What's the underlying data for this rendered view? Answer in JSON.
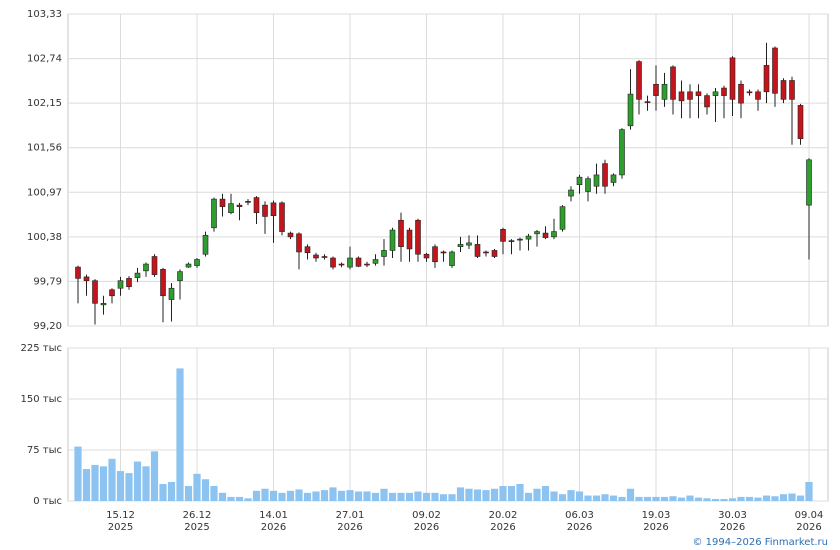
{
  "chart_data": {
    "type": "candlestick",
    "up_color": "#2e9e2e",
    "down_color": "#c3161c",
    "grid": true,
    "ylim": [
      99.2,
      103.33
    ],
    "yticks": [
      {
        "value": 99.2,
        "label": "99,20"
      },
      {
        "value": 99.79,
        "label": "99,79"
      },
      {
        "value": 100.38,
        "label": "100,38"
      },
      {
        "value": 100.97,
        "label": "100,97"
      },
      {
        "value": 101.56,
        "label": "101,56"
      },
      {
        "value": 102.15,
        "label": "102,15"
      },
      {
        "value": 102.74,
        "label": "102,74"
      },
      {
        "value": 103.33,
        "label": "103,33"
      }
    ],
    "categories": [
      null,
      null,
      null,
      null,
      null,
      "15.12 2025",
      null,
      null,
      null,
      null,
      null,
      null,
      null,
      null,
      "26.12 2025",
      null,
      null,
      null,
      null,
      null,
      null,
      null,
      null,
      "14.01 2026",
      null,
      null,
      null,
      null,
      null,
      null,
      null,
      null,
      "27.01 2026",
      null,
      null,
      null,
      null,
      null,
      null,
      null,
      null,
      "09.02 2026",
      null,
      null,
      null,
      null,
      null,
      null,
      null,
      null,
      "20.02 2026",
      null,
      null,
      null,
      null,
      null,
      null,
      null,
      null,
      "06.03 2026",
      null,
      null,
      null,
      null,
      null,
      null,
      null,
      null,
      "19.03 2026",
      null,
      null,
      null,
      null,
      null,
      null,
      null,
      null,
      "30.03 2026",
      null,
      null,
      null,
      null,
      null,
      null,
      null,
      null,
      "09.04 2026"
    ],
    "open": [
      99.98,
      99.85,
      99.8,
      99.48,
      99.68,
      99.7,
      99.83,
      99.84,
      99.93,
      100.12,
      99.95,
      99.55,
      99.8,
      99.98,
      100.0,
      100.15,
      100.5,
      100.88,
      100.7,
      100.8,
      100.85,
      100.9,
      100.8,
      100.83,
      100.83,
      100.43,
      100.42,
      100.25,
      100.14,
      100.12,
      100.1,
      100.02,
      99.98,
      100.1,
      100.02,
      100.03,
      100.12,
      100.2,
      100.6,
      100.47,
      100.6,
      100.15,
      100.25,
      100.18,
      100.0,
      100.25,
      100.27,
      100.28,
      100.18,
      100.2,
      100.48,
      100.33,
      100.35,
      100.35,
      100.42,
      100.43,
      100.38,
      100.48,
      100.92,
      101.07,
      100.98,
      101.05,
      101.35,
      101.1,
      101.2,
      101.85,
      102.7,
      102.17,
      102.4,
      102.2,
      102.63,
      102.3,
      102.3,
      102.3,
      102.25,
      102.25,
      102.35,
      102.75,
      102.4,
      102.3,
      102.3,
      102.65,
      102.88,
      102.45,
      102.45,
      102.12,
      100.8
    ],
    "high": [
      100.0,
      99.88,
      99.82,
      99.6,
      99.7,
      99.85,
      99.86,
      99.97,
      100.04,
      100.15,
      99.97,
      99.77,
      99.95,
      100.04,
      100.1,
      100.45,
      100.9,
      100.95,
      100.95,
      100.83,
      100.88,
      100.92,
      100.85,
      100.86,
      100.85,
      100.45,
      100.44,
      100.28,
      100.17,
      100.15,
      100.12,
      100.04,
      100.25,
      100.12,
      100.05,
      100.15,
      100.35,
      100.5,
      100.7,
      100.5,
      100.62,
      100.17,
      100.28,
      100.2,
      100.2,
      100.38,
      100.4,
      100.4,
      100.2,
      100.22,
      100.5,
      100.35,
      100.37,
      100.42,
      100.47,
      100.52,
      100.62,
      100.8,
      101.05,
      101.2,
      101.18,
      101.35,
      101.4,
      101.22,
      101.82,
      102.6,
      102.72,
      102.25,
      102.65,
      102.55,
      102.65,
      102.45,
      102.4,
      102.4,
      102.28,
      102.35,
      102.38,
      102.77,
      102.45,
      102.33,
      102.33,
      102.95,
      102.9,
      102.48,
      102.5,
      102.14,
      101.42
    ],
    "low": [
      99.5,
      99.6,
      99.22,
      99.35,
      99.5,
      99.6,
      99.68,
      99.78,
      99.85,
      99.85,
      99.25,
      99.26,
      99.55,
      99.97,
      99.97,
      100.12,
      100.45,
      100.65,
      100.68,
      100.6,
      100.8,
      100.55,
      100.42,
      100.3,
      100.4,
      100.35,
      99.95,
      100.08,
      100.05,
      100.08,
      99.95,
      99.98,
      99.95,
      99.98,
      99.98,
      100.0,
      100.0,
      100.1,
      100.05,
      100.05,
      100.05,
      100.05,
      99.97,
      100.05,
      99.97,
      100.18,
      100.22,
      100.1,
      100.12,
      100.1,
      100.15,
      100.15,
      100.2,
      100.2,
      100.25,
      100.35,
      100.35,
      100.45,
      100.85,
      100.95,
      100.85,
      100.95,
      100.95,
      101.05,
      101.15,
      101.8,
      102.0,
      102.05,
      102.05,
      102.1,
      102.0,
      101.95,
      101.95,
      101.95,
      102.0,
      101.9,
      101.95,
      101.98,
      101.95,
      102.25,
      102.05,
      102.15,
      102.1,
      102.15,
      101.6,
      101.6,
      100.08
    ],
    "close": [
      99.83,
      99.8,
      99.5,
      99.5,
      99.6,
      99.8,
      99.72,
      99.9,
      100.02,
      99.88,
      99.6,
      99.7,
      99.92,
      100.02,
      100.08,
      100.4,
      100.88,
      100.78,
      100.82,
      100.78,
      100.84,
      100.7,
      100.65,
      100.66,
      100.45,
      100.38,
      100.18,
      100.17,
      100.1,
      100.11,
      99.98,
      100.01,
      100.1,
      99.99,
      100.01,
      100.08,
      100.2,
      100.47,
      100.25,
      100.22,
      100.15,
      100.1,
      100.05,
      100.17,
      100.18,
      100.28,
      100.3,
      100.12,
      100.17,
      100.12,
      100.32,
      100.32,
      100.34,
      100.39,
      100.45,
      100.37,
      100.45,
      100.78,
      101.0,
      101.17,
      101.15,
      101.2,
      101.05,
      101.2,
      101.8,
      102.27,
      102.2,
      102.16,
      102.25,
      102.4,
      102.2,
      102.18,
      102.2,
      102.25,
      102.1,
      102.3,
      102.25,
      102.2,
      102.15,
      102.29,
      102.2,
      102.3,
      102.28,
      102.2,
      102.2,
      101.68,
      101.4
    ],
    "volume": {
      "type": "bar",
      "color": "#8cc3f0",
      "ylim": [
        0,
        225
      ],
      "yticks": [
        {
          "value": 0,
          "label": "0 тыс"
        },
        {
          "value": 75,
          "label": "75 тыс"
        },
        {
          "value": 150,
          "label": "150 тыс"
        },
        {
          "value": 225,
          "label": "225 тыс"
        }
      ],
      "values": [
        80,
        47,
        53,
        51,
        62,
        44,
        41,
        58,
        51,
        73,
        25,
        28,
        195,
        22,
        40,
        32,
        22,
        12,
        6,
        6,
        4,
        15,
        18,
        15,
        12,
        15,
        17,
        12,
        14,
        16,
        20,
        15,
        16,
        14,
        14,
        12,
        18,
        12,
        12,
        12,
        14,
        12,
        12,
        10,
        10,
        20,
        18,
        17,
        16,
        18,
        22,
        22,
        25,
        12,
        18,
        22,
        14,
        10,
        16,
        14,
        8,
        8,
        10,
        8,
        6,
        18,
        6,
        6,
        6,
        6,
        7,
        5,
        8,
        5,
        4,
        3,
        3,
        4,
        6,
        6,
        5,
        8,
        7,
        10,
        11,
        8,
        28
      ]
    },
    "copyright": "© 1994–2026 Finmarket.ru"
  }
}
